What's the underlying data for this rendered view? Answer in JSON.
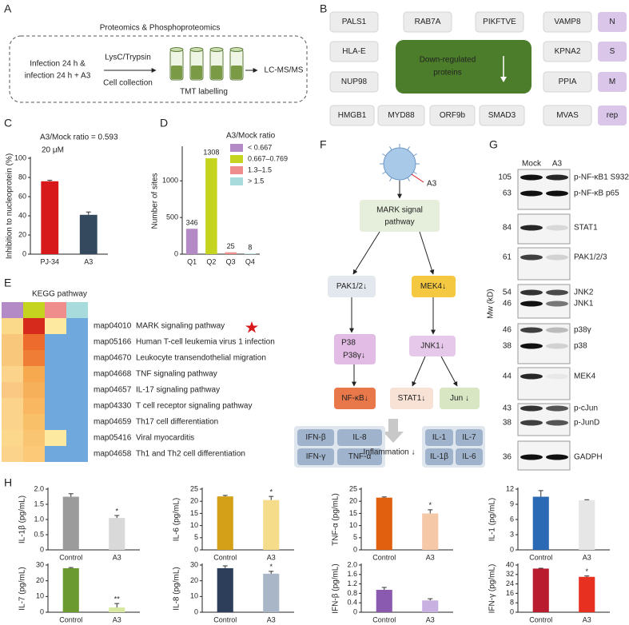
{
  "panels": {
    "labels": [
      "A",
      "B",
      "C",
      "D",
      "E",
      "F",
      "G",
      "H"
    ]
  },
  "panel_a": {
    "title": "Proteomics & Phosphoproteomics",
    "sample": [
      "Infection 24 h &",
      "infection 24 h + A3"
    ],
    "step_top": "LysC/Trypsin",
    "step_bottom": "Cell collection",
    "tubes": "TMT labelling",
    "output": "LC-MS/MS"
  },
  "panel_b": {
    "proteins": [
      "PALS1",
      "RAB7A",
      "PIKFTVE",
      "VAMP8",
      "HLA-E",
      "KPNA2",
      "NUP98",
      "PPIA",
      "HMGB1",
      "MYD88",
      "ORF9b",
      "SMAD3",
      "MVAS"
    ],
    "center": [
      "Down-regulated",
      "proteins"
    ],
    "tags": [
      "N",
      "S",
      "M",
      "rep"
    ]
  },
  "kegg": {
    "title": "KEGG pathway",
    "header_colors": [
      "#b48ac6",
      "#c5d51f",
      "#ef8c8c",
      "#a8dcdc"
    ],
    "rows": [
      {
        "id": "map04010",
        "name": "MARK signaling pathway",
        "colors": [
          "#fbd98a",
          "#d62a1c",
          "#fde9a0",
          "#6fa8dc"
        ]
      },
      {
        "id": "map05166",
        "name": "Human T-cell leukemia virus 1 infection",
        "colors": [
          "#f9c77c",
          "#ec6b2d",
          "#6fa8dc",
          "#6fa8dc"
        ]
      },
      {
        "id": "map04670",
        "name": "Leukocyte transendothelial migration",
        "colors": [
          "#f9c77c",
          "#f07d35",
          "#6fa8dc",
          "#6fa8dc"
        ]
      },
      {
        "id": "map04668",
        "name": "TNF signaling pathway",
        "colors": [
          "#fbd38a",
          "#f6a94f",
          "#6fa8dc",
          "#6fa8dc"
        ]
      },
      {
        "id": "map04657",
        "name": "IL-17 signaling pathway",
        "colors": [
          "#fac883",
          "#f6b05a",
          "#6fa8dc",
          "#6fa8dc"
        ]
      },
      {
        "id": "map04330",
        "name": "T cell receptor signaling pathway",
        "colors": [
          "#fbd38a",
          "#f8b760",
          "#6fa8dc",
          "#6fa8dc"
        ]
      },
      {
        "id": "map04659",
        "name": "Th17 cell differentiation",
        "colors": [
          "#fbd38a",
          "#f9c06a",
          "#6fa8dc",
          "#6fa8dc"
        ]
      },
      {
        "id": "map05416",
        "name": "Viral myocarditis",
        "colors": [
          "#fcd88c",
          "#fac572",
          "#fde9a0",
          "#6fa8dc"
        ]
      },
      {
        "id": "map04658",
        "name": "Th1 and Th2 cell differentiation",
        "colors": [
          "#fbd38a",
          "#fbc977",
          "#6fa8dc",
          "#6fa8dc"
        ]
      }
    ]
  },
  "panel_f": {
    "stimulus": "A3",
    "root": [
      "MARK signal",
      "pathway"
    ],
    "nodes": [
      "PAK1/2↓",
      "MEK4↓",
      "P38",
      "P38γ↓",
      "JNK1↓",
      "NF-κB↓",
      "STAT1↓",
      "Jun ↓"
    ],
    "cytokines_left": [
      "IFN-β",
      "IL-8",
      "IFN-γ",
      "TNF-α"
    ],
    "cytokines_right": [
      "IL-1",
      "IL-7",
      "IL-1β",
      "IL-6"
    ],
    "outcome": "Inflammation ↓"
  },
  "panel_g": {
    "lanes": [
      "Mock",
      "A3"
    ],
    "axis": "Mw (kD)",
    "blots": [
      {
        "mw": [
          105,
          63
        ],
        "proteins": [
          "p-NF-κB1 S932",
          "p-NF-κB p65"
        ]
      },
      {
        "mw": [
          84
        ],
        "proteins": [
          "STAT1"
        ]
      },
      {
        "mw": [
          61
        ],
        "proteins": [
          "PAK1/2/3"
        ]
      },
      {
        "mw": [
          54,
          46
        ],
        "proteins": [
          "JNK2",
          "JNK1"
        ]
      },
      {
        "mw": [
          46,
          38
        ],
        "proteins": [
          "p38γ",
          "p38"
        ]
      },
      {
        "mw": [
          44
        ],
        "proteins": [
          "MEK4"
        ]
      },
      {
        "mw": [
          43,
          38
        ],
        "proteins": [
          "p-cJun",
          "p-JunD"
        ]
      },
      {
        "mw": [
          36
        ],
        "proteins": [
          "GADPH"
        ]
      }
    ]
  },
  "chart_data": [
    {
      "type": "bar",
      "title": "A3/Mock ratio = 0.593",
      "subtitle": "20 μM",
      "y_label": "Inhibition to nucleoprotein (%)",
      "categories": [
        "PJ-34",
        "A3"
      ],
      "values": [
        76,
        41
      ],
      "errors": [
        1,
        3
      ],
      "colors": [
        "#d7191c",
        "#34495e"
      ],
      "ylim": [
        0,
        100
      ],
      "yticks": [
        0,
        20,
        40,
        60,
        80,
        100
      ]
    },
    {
      "type": "bar",
      "y_label": "Number of sites",
      "categories": [
        "Q1",
        "Q2",
        "Q3",
        "Q4"
      ],
      "values": [
        346,
        1308,
        25,
        8
      ],
      "show_values": true,
      "colors": [
        "#b48ac6",
        "#c5d51f",
        "#ef8c8c",
        "#a8dcdc"
      ],
      "ylim": [
        0,
        1450
      ],
      "yticks": [
        0,
        500,
        1000
      ],
      "legend": {
        "title": "A3/Mock ratio",
        "labels": [
          "< 0.667",
          "0.667–0.769",
          "1.3–1.5",
          "> 1.5"
        ]
      }
    },
    {
      "type": "bar",
      "y_label": "IL-1β (pg/mL)",
      "categories": [
        "Control",
        "A3"
      ],
      "values": [
        1.75,
        1.05
      ],
      "errors": [
        0.1,
        0.08
      ],
      "colors": [
        "#9b9b9b",
        "#d9d9d9"
      ],
      "ylim": [
        0,
        2
      ],
      "yticks": [
        0,
        0.5,
        {
          "value": 1,
          "label": "1.0"
        },
        1.5,
        {
          "value": 2,
          "label": "2.0"
        }
      ],
      "annotations": [
        {
          "category": "A3",
          "text": "*"
        }
      ]
    },
    {
      "type": "bar",
      "y_label": "IL-6 (pg/mL)",
      "categories": [
        "Control",
        "A3"
      ],
      "values": [
        22,
        20.5
      ],
      "errors": [
        0.4,
        1.5
      ],
      "colors": [
        "#d4a017",
        "#f5dc8a"
      ],
      "ylim": [
        0,
        25
      ],
      "yticks": [
        0,
        5,
        10,
        15,
        20,
        25
      ],
      "annotations": [
        {
          "category": "A3",
          "text": "*"
        }
      ]
    },
    {
      "type": "bar",
      "y_label": "TNF-α (pg/mL)",
      "categories": [
        "Control",
        "A3"
      ],
      "values": [
        21.5,
        15
      ],
      "errors": [
        0.3,
        1.5
      ],
      "colors": [
        "#e06010",
        "#f5c8a8"
      ],
      "ylim": [
        0,
        25
      ],
      "yticks": [
        0,
        5,
        10,
        15,
        20,
        25
      ],
      "annotations": [
        {
          "category": "A3",
          "text": "*"
        }
      ]
    },
    {
      "type": "bar",
      "y_label": "IL-1 (pg/mL)",
      "categories": [
        "Control",
        "A3"
      ],
      "values": [
        10.5,
        9.8
      ],
      "errors": [
        1.2,
        0.1
      ],
      "colors": [
        "#2a6ab5",
        "#e6e6e6"
      ],
      "ylim": [
        0,
        12
      ],
      "yticks": [
        0,
        3,
        6,
        9,
        12
      ]
    },
    {
      "type": "bar",
      "y_label": "IL-7 (pg/mL)",
      "categories": [
        "Control",
        "A3"
      ],
      "values": [
        28,
        3
      ],
      "errors": [
        0.4,
        2.5
      ],
      "colors": [
        "#6a9a30",
        "#d8e8a0"
      ],
      "ylim": [
        0,
        30
      ],
      "yticks": [
        0,
        10,
        20,
        30
      ],
      "annotations": [
        {
          "category": "A3",
          "text": "**"
        }
      ]
    },
    {
      "type": "bar",
      "y_label": "IL-8 (pg/mL)",
      "categories": [
        "Control",
        "A3"
      ],
      "values": [
        28,
        24.5
      ],
      "errors": [
        1.5,
        1.5
      ],
      "colors": [
        "#2c3e5a",
        "#a9b6c8"
      ],
      "ylim": [
        0,
        30
      ],
      "yticks": [
        0,
        10,
        20,
        30
      ],
      "annotations": [
        {
          "category": "A3",
          "text": "*"
        }
      ]
    },
    {
      "type": "bar",
      "y_label": "IFN-β (pg/mL)",
      "categories": [
        "Control",
        "A3"
      ],
      "values": [
        0.95,
        0.5
      ],
      "errors": [
        0.1,
        0.07
      ],
      "colors": [
        "#8a5ab0",
        "#c8b0e0"
      ],
      "ylim": [
        0,
        2
      ],
      "yticks": [
        0,
        0.4,
        0.8,
        1.2,
        1.6,
        {
          "value": 2,
          "label": "2.0"
        }
      ]
    },
    {
      "type": "bar",
      "y_label": "IFN-γ (pg/mL)",
      "categories": [
        "Control",
        "A3"
      ],
      "values": [
        37,
        30
      ],
      "errors": [
        0.3,
        0.8
      ],
      "colors": [
        "#b81c2e",
        "#e83020"
      ],
      "ylim": [
        0,
        40
      ],
      "yticks": [
        0,
        8,
        16,
        24,
        32,
        40
      ],
      "annotations": [
        {
          "category": "A3",
          "text": "*"
        }
      ]
    }
  ]
}
